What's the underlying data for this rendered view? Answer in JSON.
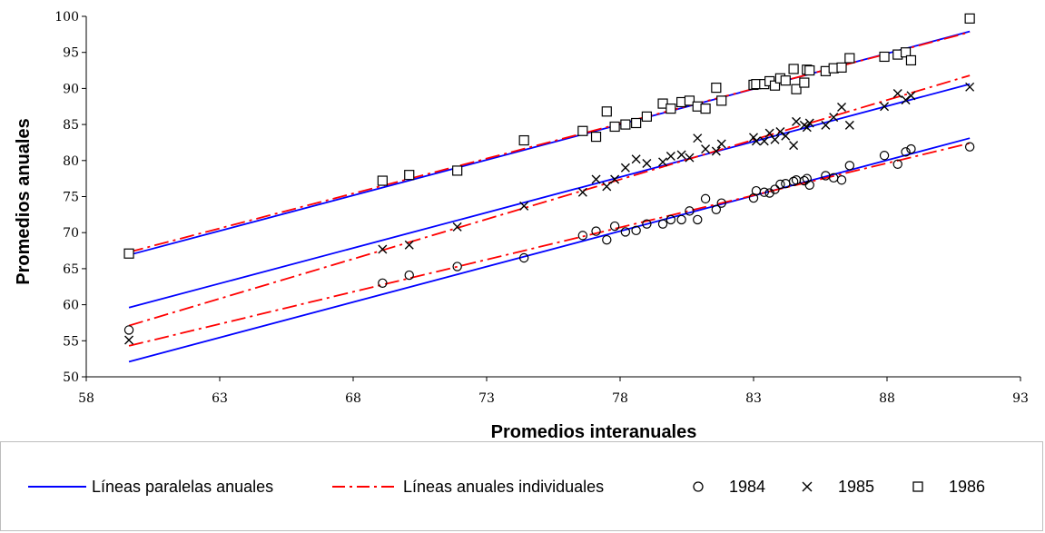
{
  "chart_data": {
    "type": "scatter",
    "title": "",
    "xlabel": "Promedios interanuales",
    "ylabel": "Promedios anuales",
    "xlim": [
      58,
      93
    ],
    "ylim": [
      50,
      100
    ],
    "xticks": [
      58,
      63,
      68,
      73,
      78,
      83,
      88,
      93
    ],
    "yticks": [
      50,
      55,
      60,
      65,
      70,
      75,
      80,
      85,
      90,
      95,
      100
    ],
    "grid": false,
    "legend_position": "bottom",
    "series": [
      {
        "name": "1984",
        "marker": "circle",
        "points": [
          [
            59.6,
            56.5
          ],
          [
            69.1,
            63.0
          ],
          [
            70.1,
            64.1
          ],
          [
            71.9,
            65.3
          ],
          [
            74.4,
            66.5
          ],
          [
            76.6,
            69.6
          ],
          [
            77.1,
            70.2
          ],
          [
            77.5,
            69.0
          ],
          [
            77.8,
            70.9
          ],
          [
            78.2,
            70.1
          ],
          [
            78.6,
            70.3
          ],
          [
            79.0,
            71.2
          ],
          [
            79.6,
            71.2
          ],
          [
            79.9,
            71.8
          ],
          [
            80.3,
            71.8
          ],
          [
            80.6,
            73.0
          ],
          [
            80.9,
            71.8
          ],
          [
            81.2,
            74.7
          ],
          [
            81.6,
            73.2
          ],
          [
            81.8,
            74.1
          ],
          [
            83.0,
            74.8
          ],
          [
            83.1,
            75.8
          ],
          [
            83.4,
            75.6
          ],
          [
            83.6,
            75.5
          ],
          [
            83.8,
            76.0
          ],
          [
            84.0,
            76.7
          ],
          [
            84.2,
            76.8
          ],
          [
            84.5,
            77.1
          ],
          [
            84.6,
            77.3
          ],
          [
            84.9,
            77.2
          ],
          [
            85.0,
            77.5
          ],
          [
            85.1,
            76.6
          ],
          [
            85.7,
            77.9
          ],
          [
            86.0,
            77.6
          ],
          [
            86.3,
            77.3
          ],
          [
            86.6,
            79.3
          ],
          [
            87.9,
            80.7
          ],
          [
            88.4,
            79.5
          ],
          [
            88.7,
            81.2
          ],
          [
            88.9,
            81.6
          ],
          [
            91.1,
            81.9
          ]
        ]
      },
      {
        "name": "1985",
        "marker": "x",
        "points": [
          [
            59.6,
            55.1
          ],
          [
            69.1,
            67.7
          ],
          [
            70.1,
            68.3
          ],
          [
            71.9,
            70.8
          ],
          [
            74.4,
            73.7
          ],
          [
            76.6,
            75.6
          ],
          [
            77.1,
            77.4
          ],
          [
            77.5,
            76.4
          ],
          [
            77.8,
            77.4
          ],
          [
            78.2,
            79.0
          ],
          [
            78.6,
            80.2
          ],
          [
            79.0,
            79.6
          ],
          [
            79.6,
            79.8
          ],
          [
            79.9,
            80.6
          ],
          [
            80.3,
            80.8
          ],
          [
            80.6,
            80.4
          ],
          [
            80.9,
            83.1
          ],
          [
            81.2,
            81.6
          ],
          [
            81.6,
            81.3
          ],
          [
            81.8,
            82.3
          ],
          [
            83.0,
            83.2
          ],
          [
            83.1,
            82.7
          ],
          [
            83.4,
            82.7
          ],
          [
            83.6,
            83.8
          ],
          [
            83.8,
            82.9
          ],
          [
            84.0,
            84.0
          ],
          [
            84.2,
            83.4
          ],
          [
            84.5,
            82.1
          ],
          [
            84.6,
            85.4
          ],
          [
            84.9,
            84.9
          ],
          [
            85.0,
            84.6
          ],
          [
            85.1,
            85.2
          ],
          [
            85.7,
            84.9
          ],
          [
            86.0,
            86.0
          ],
          [
            86.3,
            87.4
          ],
          [
            86.6,
            84.9
          ],
          [
            87.9,
            87.5
          ],
          [
            88.4,
            89.3
          ],
          [
            88.7,
            88.4
          ],
          [
            88.9,
            89.0
          ],
          [
            91.1,
            90.2
          ]
        ]
      },
      {
        "name": "1986",
        "marker": "square",
        "points": [
          [
            59.6,
            67.1
          ],
          [
            69.1,
            77.2
          ],
          [
            70.1,
            78.0
          ],
          [
            71.9,
            78.6
          ],
          [
            74.4,
            82.8
          ],
          [
            76.6,
            84.1
          ],
          [
            77.1,
            83.3
          ],
          [
            77.5,
            86.8
          ],
          [
            77.8,
            84.7
          ],
          [
            78.2,
            85.0
          ],
          [
            78.6,
            85.2
          ],
          [
            79.0,
            86.1
          ],
          [
            79.6,
            87.9
          ],
          [
            79.9,
            87.2
          ],
          [
            80.3,
            88.1
          ],
          [
            80.6,
            88.3
          ],
          [
            80.9,
            87.5
          ],
          [
            81.2,
            87.2
          ],
          [
            81.6,
            90.1
          ],
          [
            81.8,
            88.3
          ],
          [
            83.0,
            90.5
          ],
          [
            83.1,
            90.6
          ],
          [
            83.4,
            90.6
          ],
          [
            83.6,
            91.0
          ],
          [
            83.8,
            90.4
          ],
          [
            84.0,
            91.4
          ],
          [
            84.2,
            91.1
          ],
          [
            84.5,
            92.7
          ],
          [
            84.6,
            89.9
          ],
          [
            84.9,
            90.8
          ],
          [
            85.0,
            92.6
          ],
          [
            85.1,
            92.5
          ],
          [
            85.7,
            92.4
          ],
          [
            86.0,
            92.8
          ],
          [
            86.3,
            92.9
          ],
          [
            86.6,
            94.2
          ],
          [
            87.9,
            94.4
          ],
          [
            88.4,
            94.7
          ],
          [
            88.7,
            95.0
          ],
          [
            88.9,
            93.9
          ],
          [
            91.1,
            99.7
          ]
        ]
      }
    ],
    "fit_lines": [
      {
        "name": "Líneas paralelas anuales",
        "style": "solid",
        "color": "#0000ff",
        "year": "1984",
        "from": [
          59.6,
          52.1
        ],
        "to": [
          91.1,
          83.1
        ]
      },
      {
        "name": "Líneas paralelas anuales",
        "style": "solid",
        "color": "#0000ff",
        "year": "1985",
        "from": [
          59.6,
          59.6
        ],
        "to": [
          91.1,
          90.6
        ]
      },
      {
        "name": "Líneas paralelas anuales",
        "style": "solid",
        "color": "#0000ff",
        "year": "1986",
        "from": [
          59.6,
          66.9
        ],
        "to": [
          91.1,
          97.9
        ]
      },
      {
        "name": "Líneas anuales individuales",
        "style": "dash-dot",
        "color": "#ff0000",
        "year": "1984",
        "from": [
          59.6,
          54.3
        ],
        "to": [
          91.1,
          82.4
        ]
      },
      {
        "name": "Líneas anuales individuales",
        "style": "dash-dot",
        "color": "#ff0000",
        "year": "1985",
        "from": [
          59.6,
          57.1
        ],
        "to": [
          91.1,
          91.8
        ]
      },
      {
        "name": "Líneas anuales individuales",
        "style": "dash-dot",
        "color": "#ff0000",
        "year": "1986",
        "from": [
          59.6,
          67.3
        ],
        "to": [
          91.1,
          97.8
        ]
      }
    ],
    "legend": {
      "parallel_label": "Líneas paralelas anuales",
      "individual_label": "Líneas anuales individuales",
      "y1984_label": "1984",
      "y1985_label": "1985",
      "y1986_label": "1986"
    }
  }
}
